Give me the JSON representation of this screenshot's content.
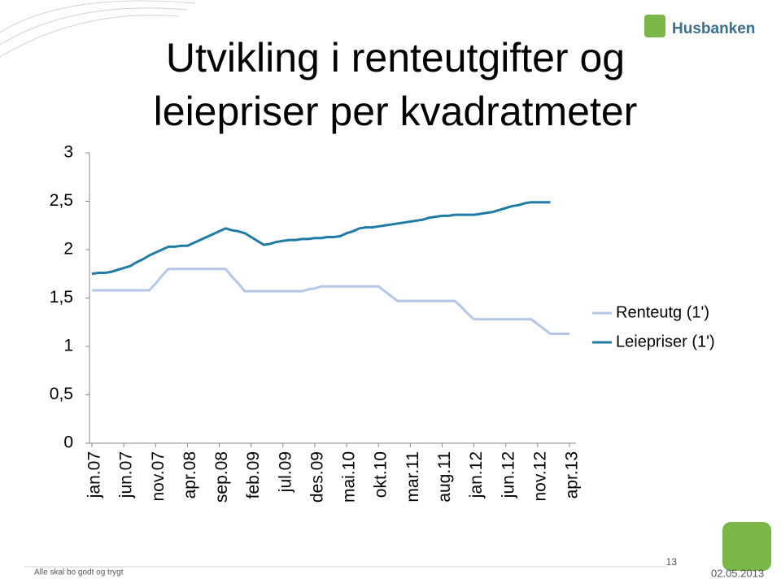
{
  "logo_text": "Husbanken",
  "footer": "Alle skal bo godt og trygt",
  "page_number": "13",
  "date": "02.05.2013",
  "chart_data": {
    "type": "line",
    "title": [
      "Utvikling i renteutgifter og",
      "leiepriser per kvadratmeter"
    ],
    "categories": [
      "jan.07",
      null,
      null,
      null,
      null,
      "jun.07",
      null,
      null,
      null,
      null,
      "nov.07",
      null,
      null,
      null,
      null,
      "apr.08",
      null,
      null,
      null,
      null,
      "sep.08",
      null,
      null,
      null,
      null,
      "feb.09",
      null,
      null,
      null,
      null,
      "jul.09",
      null,
      null,
      null,
      null,
      "des.09",
      null,
      null,
      null,
      null,
      "mai.10",
      null,
      null,
      null,
      null,
      "okt.10",
      null,
      null,
      null,
      null,
      "mar.11",
      null,
      null,
      null,
      null,
      "aug.11",
      null,
      null,
      null,
      null,
      "jan.12",
      null,
      null,
      null,
      null,
      "jun.12",
      null,
      null,
      null,
      null,
      "nov.12",
      null,
      null,
      null,
      null,
      "apr.13"
    ],
    "series": [
      {
        "name": "Renteutg (1')",
        "color": "#b4c7e7",
        "values": [
          1.58,
          1.58,
          1.58,
          1.58,
          1.58,
          1.58,
          1.58,
          1.58,
          1.58,
          1.58,
          1.65,
          1.73,
          1.8,
          1.8,
          1.8,
          1.8,
          1.8,
          1.8,
          1.8,
          1.8,
          1.8,
          1.8,
          1.72,
          1.65,
          1.57,
          1.57,
          1.57,
          1.57,
          1.57,
          1.57,
          1.57,
          1.57,
          1.57,
          1.57,
          1.59,
          1.6,
          1.62,
          1.62,
          1.62,
          1.62,
          1.62,
          1.62,
          1.62,
          1.62,
          1.62,
          1.62,
          1.57,
          1.52,
          1.47,
          1.47,
          1.47,
          1.47,
          1.47,
          1.47,
          1.47,
          1.47,
          1.47,
          1.47,
          1.41,
          1.34,
          1.28,
          1.28,
          1.28,
          1.28,
          1.28,
          1.28,
          1.28,
          1.28,
          1.28,
          1.28,
          1.23,
          1.18,
          1.13,
          1.13,
          1.13,
          1.13
        ]
      },
      {
        "name": "Leiepriser (1')",
        "color": "#1f7ba5",
        "values": [
          1.75,
          1.76,
          1.76,
          1.77,
          1.79,
          1.81,
          1.83,
          1.87,
          1.9,
          1.94,
          1.97,
          2.0,
          2.03,
          2.03,
          2.04,
          2.04,
          2.07,
          2.1,
          2.13,
          2.16,
          2.19,
          2.22,
          2.2,
          2.19,
          2.17,
          2.13,
          2.09,
          2.05,
          2.06,
          2.08,
          2.09,
          2.1,
          2.1,
          2.11,
          2.11,
          2.12,
          2.12,
          2.13,
          2.13,
          2.14,
          2.17,
          2.19,
          2.22,
          2.23,
          2.23,
          2.24,
          2.25,
          2.26,
          2.27,
          2.28,
          2.29,
          2.3,
          2.31,
          2.33,
          2.34,
          2.35,
          2.35,
          2.36,
          2.36,
          2.36,
          2.36,
          2.37,
          2.38,
          2.39,
          2.41,
          2.43,
          2.45,
          2.46,
          2.48,
          2.49,
          2.49,
          2.49,
          2.49,
          null,
          null,
          null
        ]
      }
    ],
    "ylim": [
      0,
      3
    ],
    "yticks": [
      0,
      {
        "value": 0.5,
        "label": "0,5"
      },
      1,
      {
        "value": 1.5,
        "label": "1,5"
      },
      2,
      {
        "value": 2.5,
        "label": "2,5"
      },
      3
    ],
    "grid": false,
    "legend": "right"
  }
}
